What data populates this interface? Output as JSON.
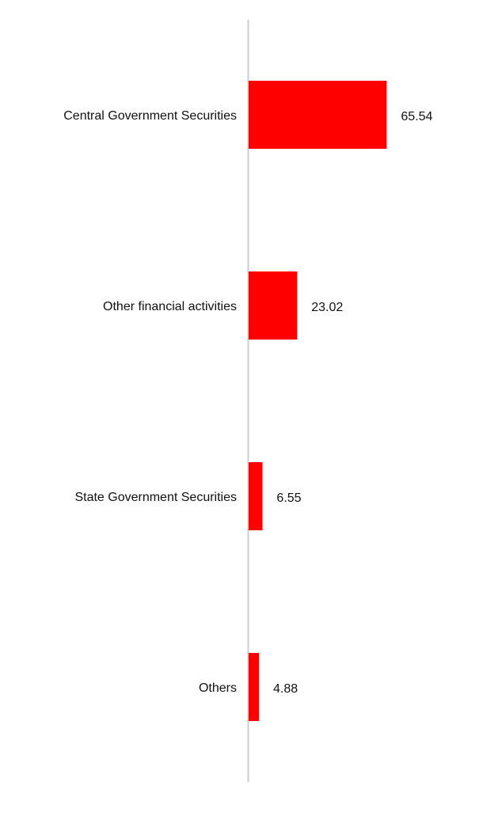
{
  "chart_data": {
    "type": "bar",
    "orientation": "horizontal",
    "categories": [
      "Central Government Securities",
      "Other financial activities",
      "State Government Securities",
      "Others"
    ],
    "values": [
      65.54,
      23.02,
      6.55,
      4.88
    ],
    "color": "#ff0000"
  }
}
